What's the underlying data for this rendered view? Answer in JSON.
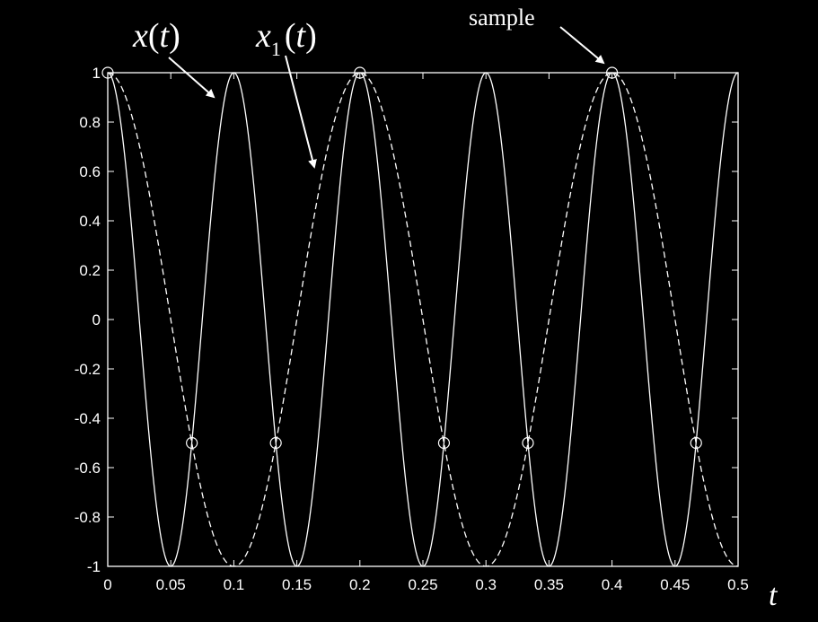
{
  "chart_data": {
    "type": "line",
    "title": "",
    "xlabel": "t",
    "ylabel": "",
    "xlim": [
      0,
      0.5
    ],
    "ylim": [
      -1,
      1
    ],
    "x_ticks": [
      "0",
      "0.05",
      "0.1",
      "0.15",
      "0.2",
      "0.25",
      "0.3",
      "0.35",
      "0.4",
      "0.45",
      "0.5"
    ],
    "y_ticks": [
      "1",
      "0.8",
      "0.6",
      "0.4",
      "0.2",
      "0",
      "-0.2",
      "-0.4",
      "-0.6",
      "-0.8",
      "-1"
    ],
    "grid": false,
    "series": [
      {
        "name": "x(t)",
        "function": "cos(2*pi*10*t)",
        "frequency": 10,
        "style": "solid",
        "color": "#ffffff"
      },
      {
        "name": "x1(t)",
        "function": "cos(2*pi*5*t)",
        "frequency": 5,
        "style": "dashed",
        "color": "#ffffff"
      }
    ],
    "samples": {
      "marker": "circle",
      "points": [
        {
          "x": 0,
          "y": 1
        },
        {
          "x": 0.0667,
          "y": -0.5
        },
        {
          "x": 0.1333,
          "y": -0.5
        },
        {
          "x": 0.2,
          "y": 1
        },
        {
          "x": 0.2667,
          "y": -0.5
        },
        {
          "x": 0.3333,
          "y": -0.5
        },
        {
          "x": 0.4,
          "y": 1
        },
        {
          "x": 0.4667,
          "y": -0.5
        }
      ]
    },
    "annotations": {
      "x_label": {
        "main": "x",
        "paren_open": "(",
        "var": "t",
        "paren_close": ")"
      },
      "x1_label": {
        "main": "x",
        "sub": "1",
        "paren_open": "(",
        "var": "t",
        "paren_close": ")"
      },
      "sample_label": "sample"
    },
    "background": "#000000",
    "foreground": "#ffffff"
  }
}
